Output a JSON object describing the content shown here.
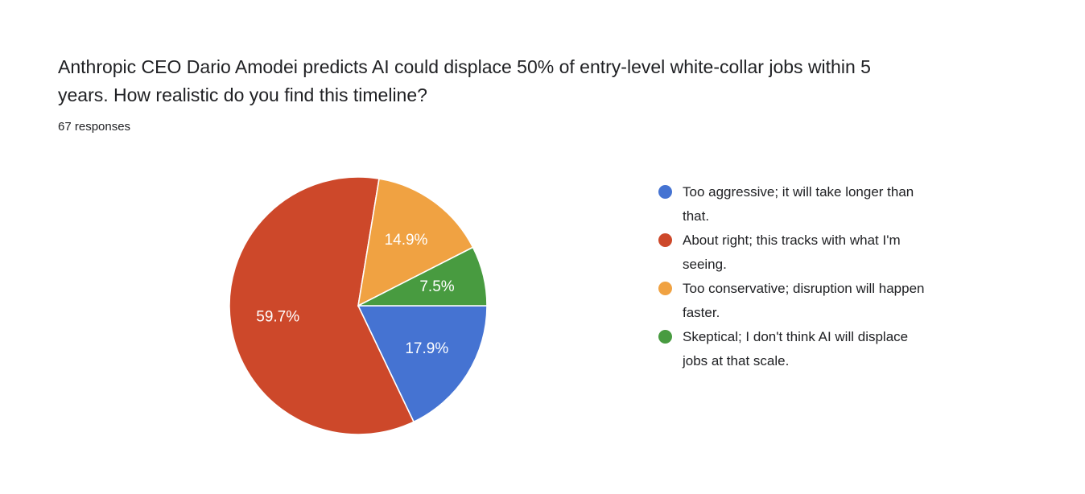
{
  "header": {
    "title_line1": "Anthropic CEO Dario Amodei predicts AI could displace 50% of entry-level white-collar jobs within 5",
    "title_line2": "years. How realistic do you find this timeline?",
    "response_count": "67 responses"
  },
  "legend": {
    "items": [
      {
        "line1": "Too aggressive; it will take longer than",
        "line2": "that."
      },
      {
        "line1": "About right; this tracks with what I'm",
        "line2": "seeing."
      },
      {
        "line1": "Too conservative; disruption will happen",
        "line2": "faster."
      },
      {
        "line1": "Skeptical; I don't think AI will displace",
        "line2": "jobs at that scale."
      }
    ]
  },
  "chart_data": {
    "type": "pie",
    "title": "Anthropic CEO Dario Amodei predicts AI could displace 50% of entry-level white-collar jobs within 5 years. How realistic do you find this timeline?",
    "subtitle": "67 responses",
    "total_responses": 67,
    "labels": [
      "Too aggressive; it will take longer than that.",
      "About right; this tracks with what I'm seeing.",
      "Too conservative; disruption will happen faster.",
      "Skeptical; I don't think AI will displace jobs at that scale."
    ],
    "values": [
      17.9,
      59.7,
      14.9,
      7.5
    ],
    "value_labels": [
      "17.9%",
      "59.7%",
      "14.9%",
      "7.5%"
    ],
    "colors": [
      "#4573D2",
      "#CD482A",
      "#F0A242",
      "#489B40"
    ],
    "start_angle_deg_clockwise_from_top": 90,
    "legend_position": "right",
    "slice_label_color": "#ffffff"
  }
}
